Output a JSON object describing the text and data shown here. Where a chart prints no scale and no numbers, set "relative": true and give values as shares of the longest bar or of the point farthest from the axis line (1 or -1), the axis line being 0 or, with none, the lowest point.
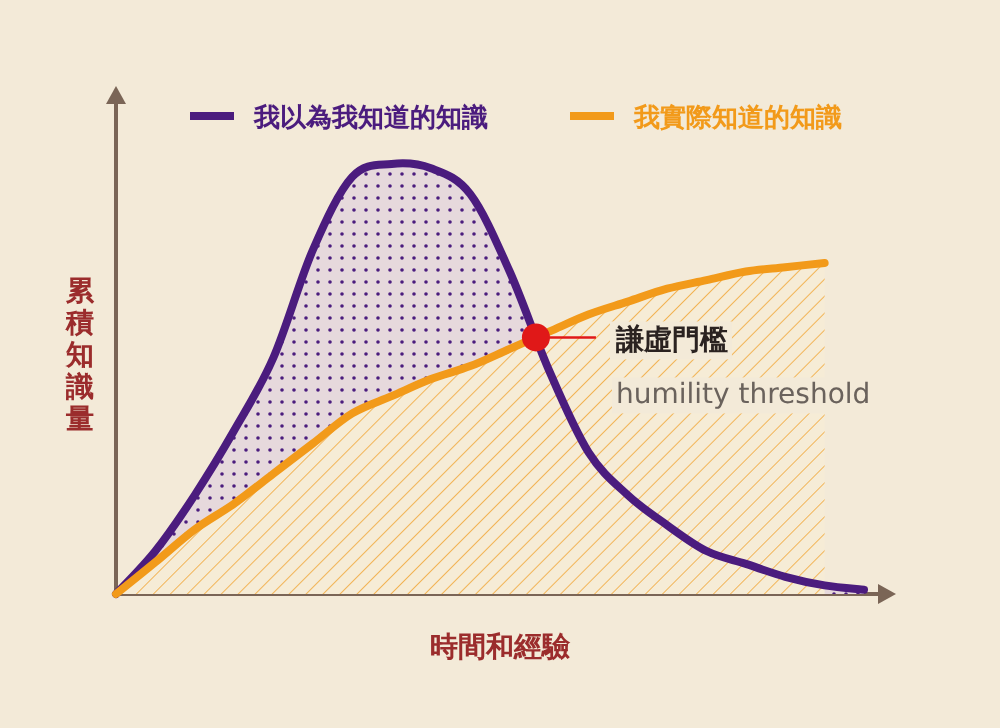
{
  "chart_data": {
    "type": "area",
    "relative": true,
    "legend": "top",
    "xlabel": "時間和經驗",
    "ylabel": "累積知識量",
    "categories": [
      null,
      null,
      null,
      null,
      null,
      null,
      null,
      null,
      null,
      null,
      null,
      null,
      null,
      null,
      null,
      null,
      null,
      null,
      null,
      null
    ],
    "series": [
      {
        "name": "我以為我知道的知識",
        "color": "#4b1c7e",
        "values": [
          0,
          0.1,
          0.23,
          0.38,
          0.55,
          0.8,
          0.97,
          1.0,
          0.99,
          0.93,
          0.75,
          0.52,
          0.33,
          0.23,
          0.16,
          0.1,
          0.07,
          0.04,
          0.02,
          0.01
        ]
      },
      {
        "name": "我實際知道的知識",
        "color": "#f29a1a",
        "values": [
          0,
          0.074,
          0.15,
          0.21,
          0.28,
          0.35,
          0.42,
          0.46,
          0.5,
          0.53,
          0.57,
          0.61,
          0.65,
          0.68,
          0.71,
          0.73,
          0.75,
          0.76,
          0.77,
          null
        ]
      }
    ],
    "annotations": [
      "謙虛門檻",
      "humility threshold"
    ]
  }
}
